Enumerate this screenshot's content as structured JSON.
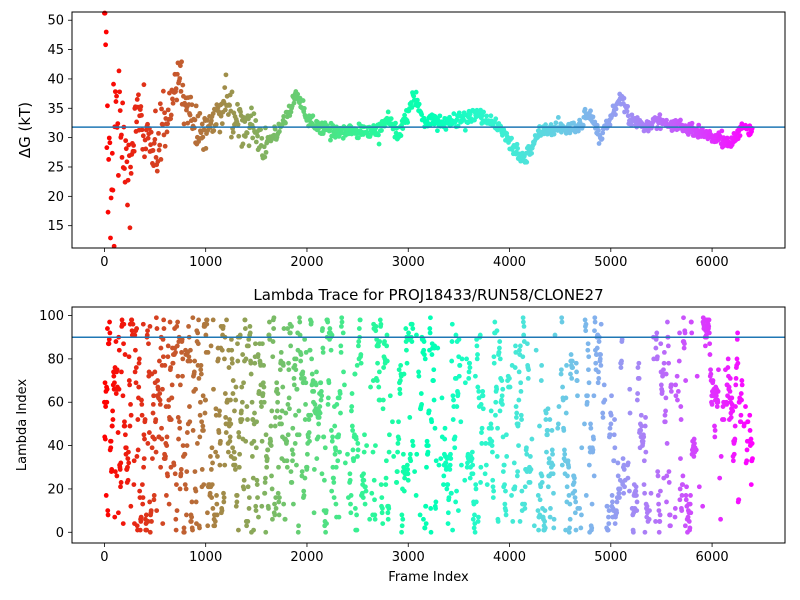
{
  "chart_data": [
    {
      "type": "scatter",
      "title": "",
      "xlabel": "",
      "ylabel": "ΔG (kT)",
      "xlim": [
        -320,
        6720
      ],
      "ylim": [
        11.2,
        51.4
      ],
      "x_ticks": [
        0,
        1000,
        2000,
        3000,
        4000,
        5000,
        6000
      ],
      "y_ticks": [
        15,
        20,
        25,
        30,
        35,
        40,
        45,
        50
      ],
      "x_tick_labels": [
        "0",
        "1000",
        "2000",
        "3000",
        "4000",
        "5000",
        "6000"
      ],
      "y_tick_labels": [
        "15",
        "20",
        "25",
        "30",
        "35",
        "40",
        "45",
        "50"
      ],
      "grid": false,
      "colormap": "rainbow (red at frame 0 → violet at last frame)",
      "reference_line": {
        "y": 31.8,
        "color": "#1f77b4"
      },
      "series": [
        {
          "frames_range": [
            0,
            6400
          ],
          "trend_points": [
            [
              0,
              50
            ],
            [
              20,
              40
            ],
            [
              40,
              30
            ],
            [
              60,
              20
            ],
            [
              80,
              34
            ],
            [
              100,
              28
            ],
            [
              150,
              32
            ],
            [
              250,
              25
            ],
            [
              350,
              33
            ],
            [
              450,
              27
            ],
            [
              600,
              31
            ],
            [
              750,
              40
            ],
            [
              850,
              33
            ],
            [
              950,
              31
            ],
            [
              1050,
              32
            ],
            [
              1200,
              36
            ],
            [
              1300,
              32
            ],
            [
              1450,
              33
            ],
            [
              1550,
              29
            ],
            [
              1650,
              30
            ],
            [
              1750,
              32
            ],
            [
              1900,
              37.5
            ],
            [
              2000,
              33
            ],
            [
              2100,
              32
            ],
            [
              2300,
              31
            ],
            [
              2500,
              31
            ],
            [
              2700,
              31
            ],
            [
              2800,
              33.5
            ],
            [
              2900,
              30
            ],
            [
              3050,
              37
            ],
            [
              3150,
              33
            ],
            [
              3300,
              32.5
            ],
            [
              3500,
              33
            ],
            [
              3700,
              33.5
            ],
            [
              3900,
              32
            ],
            [
              4050,
              28
            ],
            [
              4150,
              26.5
            ],
            [
              4300,
              31
            ],
            [
              4500,
              31.5
            ],
            [
              4700,
              32
            ],
            [
              4780,
              34
            ],
            [
              4900,
              30
            ],
            [
              5100,
              37
            ],
            [
              5200,
              33
            ],
            [
              5350,
              32
            ],
            [
              5500,
              33
            ],
            [
              5600,
              32
            ],
            [
              5800,
              31.5
            ],
            [
              6000,
              30
            ],
            [
              6200,
              29
            ],
            [
              6300,
              32
            ],
            [
              6400,
              31
            ]
          ]
        }
      ]
    },
    {
      "type": "scatter",
      "title": "Lambda Trace for PROJ18433/RUN58/CLONE27",
      "xlabel": "Frame Index",
      "ylabel": "Lambda Index",
      "xlim": [
        -320,
        6720
      ],
      "ylim": [
        -4.95,
        103.95
      ],
      "x_ticks": [
        0,
        1000,
        2000,
        3000,
        4000,
        5000,
        6000
      ],
      "y_ticks": [
        0,
        20,
        40,
        60,
        80,
        100
      ],
      "x_tick_labels": [
        "0",
        "1000",
        "2000",
        "3000",
        "4000",
        "5000",
        "6000"
      ],
      "y_tick_labels": [
        "0",
        "20",
        "40",
        "60",
        "80",
        "100"
      ],
      "grid": false,
      "colormap": "rainbow (red at frame 0 → violet at last frame)",
      "reference_line": {
        "y": 90,
        "color": "#1f77b4"
      },
      "series": [
        {
          "frames_range": [
            0,
            6400
          ],
          "lambda_range": [
            0,
            99
          ],
          "description_points": [
            [
              0,
              2
            ],
            [
              0,
              94
            ],
            [
              100,
              50
            ],
            [
              500,
              60
            ],
            [
              1000,
              40
            ],
            [
              1500,
              70
            ],
            [
              2000,
              30
            ],
            [
              2500,
              50
            ],
            [
              3000,
              10
            ],
            [
              3500,
              60
            ],
            [
              4000,
              90
            ],
            [
              4500,
              30
            ],
            [
              5000,
              5
            ],
            [
              5500,
              50
            ],
            [
              6000,
              70
            ],
            [
              6400,
              40
            ]
          ]
        }
      ]
    }
  ]
}
